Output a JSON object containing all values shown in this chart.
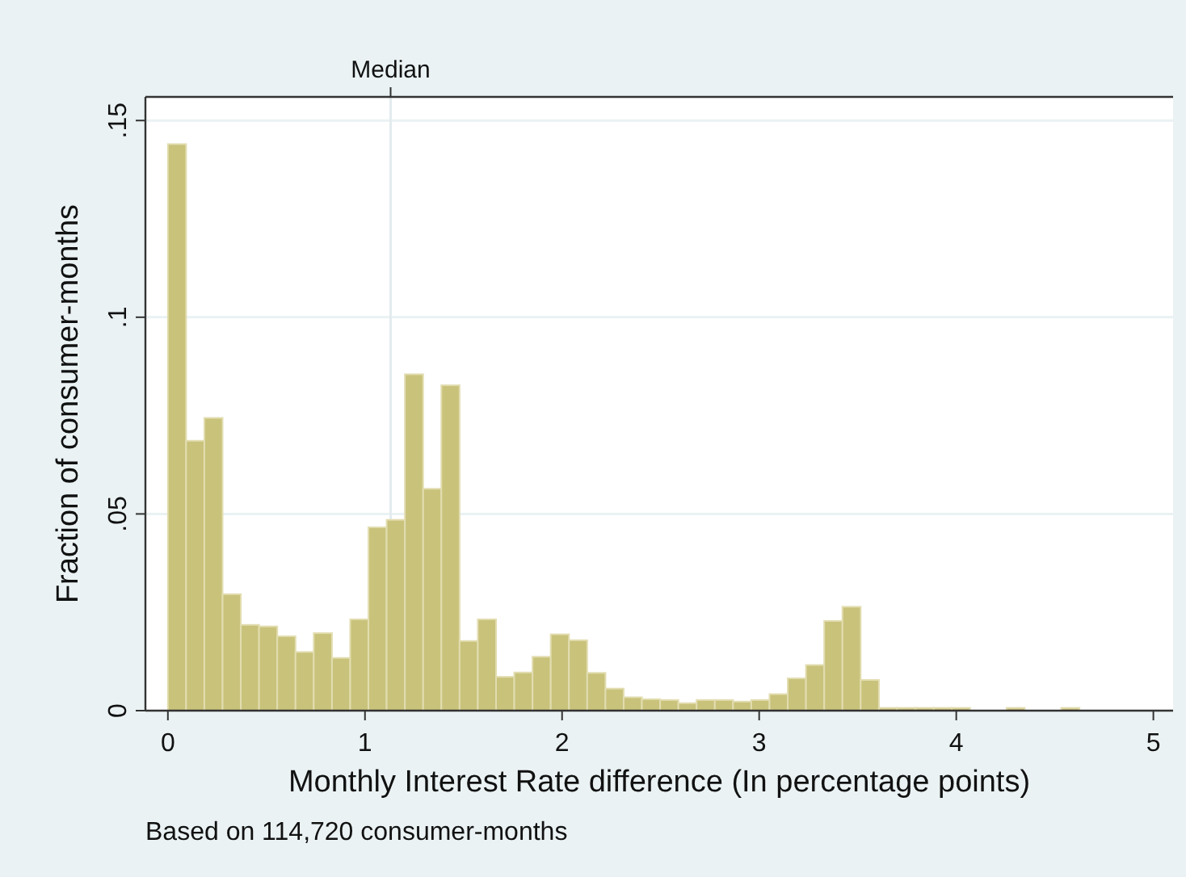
{
  "chart_data": {
    "type": "histogram",
    "xlabel": "Monthly Interest Rate difference (In percentage points)",
    "ylabel": "Fraction of consumer-months",
    "bins": [
      0,
      0.0925,
      0.185,
      0.2775,
      0.37,
      0.4625,
      0.555,
      0.6475,
      0.74,
      0.8325,
      0.925,
      1.0175,
      1.11,
      1.2025,
      1.295,
      1.3875,
      1.48,
      1.5725,
      1.665,
      1.7575,
      1.85,
      1.9425,
      2.035,
      2.1275,
      2.22,
      2.3125,
      2.405,
      2.4975,
      2.59,
      2.6825,
      2.775,
      2.8675,
      2.96,
      3.0525,
      3.145,
      3.2375,
      3.33,
      3.4225,
      3.515,
      3.6075,
      3.7,
      3.7925,
      3.885,
      3.9775,
      4.07,
      4.1625,
      4.255,
      4.3475,
      4.44,
      4.5325,
      4.625
    ],
    "values": [
      0.144,
      0.0686,
      0.0744,
      0.0296,
      0.0218,
      0.0214,
      0.0189,
      0.0149,
      0.0197,
      0.0134,
      0.0232,
      0.0466,
      0.0485,
      0.0855,
      0.0564,
      0.0827,
      0.0177,
      0.0232,
      0.0086,
      0.0097,
      0.0137,
      0.0194,
      0.0179,
      0.0096,
      0.0056,
      0.0034,
      0.0029,
      0.0027,
      0.0019,
      0.0027,
      0.0027,
      0.0023,
      0.0027,
      0.0042,
      0.0082,
      0.0116,
      0.0228,
      0.0264,
      0.0078,
      0.0007,
      0.0007,
      0.0007,
      0.0007,
      0.0007,
      0,
      0,
      0.0007,
      0,
      0,
      0.0007
    ],
    "color": "#c9c27b",
    "xlim": [
      -0.114,
      5.1
    ],
    "xticks": [
      0,
      1,
      2,
      3,
      4,
      5
    ],
    "ylim": [
      0,
      0.156
    ],
    "yticks": [
      {
        "value": 0,
        "label": "0"
      },
      {
        "value": 0.05,
        "label": ".05"
      },
      {
        "value": 0.1,
        "label": ".1"
      },
      {
        "value": 0.15,
        "label": ".15"
      }
    ],
    "grid": "y",
    "ref_lines": [
      {
        "axis": "x",
        "value": 1.13,
        "label": "Median",
        "color": "#e3ebee"
      }
    ],
    "annotations": [
      "Based on 114,720 consumer-months"
    ]
  }
}
